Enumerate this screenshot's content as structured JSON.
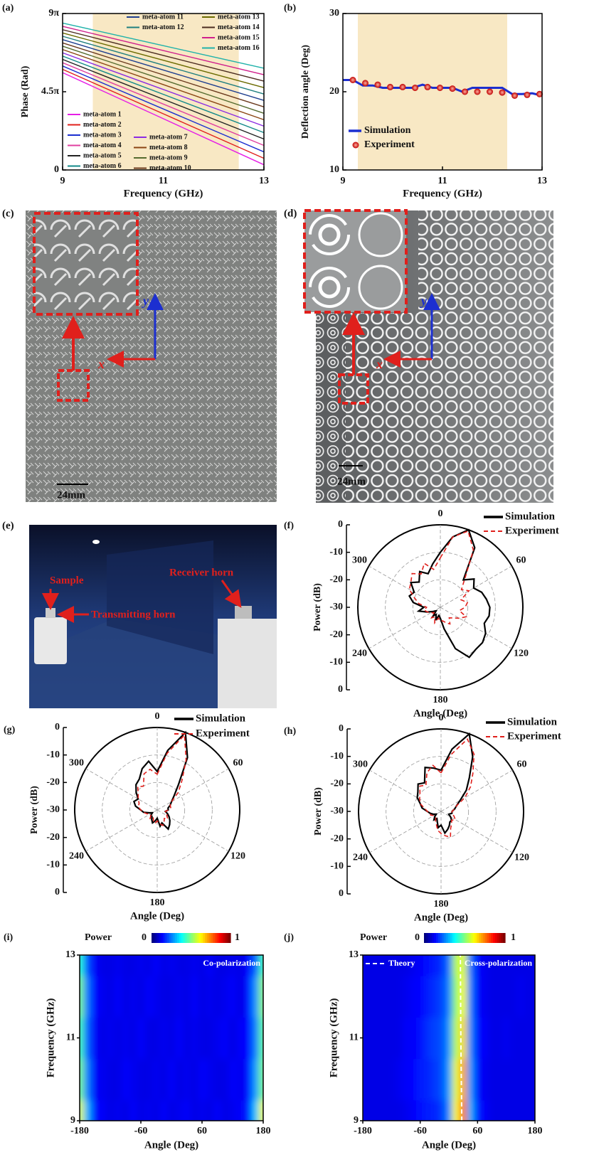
{
  "chart_data": [
    {
      "panel": "(a)",
      "type": "line",
      "xlabel": "Frequency (GHz)",
      "ylabel": "Phase (Rad)",
      "x": [
        9,
        10,
        11,
        12,
        13
      ],
      "xlim": [
        9,
        13
      ],
      "xticks": [
        9,
        11,
        13
      ],
      "ylim": [
        0,
        28.274
      ],
      "yticks": [
        0,
        {
          "value": 14.137,
          "label": "4.5π"
        },
        {
          "value": 28.274,
          "label": "9π"
        }
      ],
      "shaded_range": [
        9.6,
        12.5
      ],
      "shaded_color": "#f8e8c4",
      "series": [
        {
          "name": "meta-atom 1",
          "color": "#e61ee6",
          "values": [
            17.59,
            13.43,
            9.27,
            5.1,
            0.94
          ]
        },
        {
          "name": "meta-atom 2",
          "color": "#e0201c",
          "values": [
            18.19,
            14.17,
            10.15,
            6.12,
            2.1
          ]
        },
        {
          "name": "meta-atom 3",
          "color": "#1c2fd0",
          "values": [
            18.79,
            14.91,
            11.03,
            7.15,
            3.27
          ]
        },
        {
          "name": "meta-atom 4",
          "color": "#e040a0",
          "values": [
            19.38,
            15.64,
            11.91,
            8.17,
            4.43
          ]
        },
        {
          "name": "meta-atom 5",
          "color": "#222222",
          "values": [
            19.98,
            16.38,
            12.79,
            9.19,
            5.59
          ]
        },
        {
          "name": "meta-atom 6",
          "color": "#138a8a",
          "values": [
            20.58,
            17.12,
            13.67,
            10.21,
            6.75
          ]
        },
        {
          "name": "meta-atom 7",
          "color": "#8a2be2",
          "values": [
            21.17,
            17.86,
            14.55,
            11.23,
            7.92
          ]
        },
        {
          "name": "meta-atom 8",
          "color": "#8b4513",
          "values": [
            21.77,
            18.6,
            15.43,
            12.25,
            9.08
          ]
        },
        {
          "name": "meta-atom 9",
          "color": "#556b2f",
          "values": [
            22.37,
            19.34,
            16.31,
            13.27,
            10.24
          ]
        },
        {
          "name": "meta-atom 10",
          "color": "#6b3a1e",
          "values": [
            22.97,
            20.08,
            17.19,
            14.29,
            11.4
          ]
        },
        {
          "name": "meta-atom 11",
          "color": "#1f3f8f",
          "values": [
            23.56,
            20.81,
            18.07,
            15.32,
            12.57
          ]
        },
        {
          "name": "meta-atom 12",
          "color": "#1f7f7f",
          "values": [
            24.16,
            21.55,
            18.95,
            16.34,
            13.73
          ]
        },
        {
          "name": "meta-atom 13",
          "color": "#6b6b00",
          "values": [
            24.76,
            22.29,
            19.83,
            17.36,
            14.89
          ]
        },
        {
          "name": "meta-atom 14",
          "color": "#4b2c20",
          "values": [
            25.35,
            23.03,
            20.7,
            18.38,
            16.05
          ]
        },
        {
          "name": "meta-atom 15",
          "color": "#d0208c",
          "values": [
            25.95,
            23.77,
            21.58,
            19.4,
            17.22
          ]
        },
        {
          "name": "meta-atom 16",
          "color": "#20b2aa",
          "values": [
            26.55,
            24.51,
            22.47,
            20.42,
            18.38
          ]
        }
      ]
    },
    {
      "panel": "(b)",
      "type": "line",
      "xlabel": "Frequency (GHz)",
      "ylabel": "Deflection angle (Deg)",
      "xlim": [
        9,
        13
      ],
      "xticks": [
        9,
        11,
        13
      ],
      "ylim": [
        10,
        30
      ],
      "yticks": [
        10,
        20,
        30
      ],
      "shaded_range": [
        9.3,
        12.3
      ],
      "shaded_color": "#f8e8c4",
      "series": [
        {
          "name": "Simulation",
          "color": "#1c2fd0",
          "x": [
            9,
            9.2,
            9.4,
            9.6,
            9.8,
            10,
            10.2,
            10.4,
            10.6,
            10.8,
            11,
            11.2,
            11.4,
            11.6,
            11.8,
            12,
            12.2,
            12.4,
            12.6,
            12.8,
            13
          ],
          "values": [
            21.5,
            21.5,
            20.8,
            20.8,
            20.5,
            20.5,
            20.5,
            20.5,
            20.9,
            20.5,
            20.5,
            20.5,
            20.0,
            20.5,
            20.5,
            20.5,
            20.5,
            19.7,
            19.7,
            19.8,
            19.5
          ]
        },
        {
          "name": "Experiment",
          "color": "#e0201c",
          "marker": "circle",
          "x": [
            9.2,
            9.45,
            9.7,
            9.95,
            10.2,
            10.45,
            10.7,
            10.95,
            11.2,
            11.45,
            11.7,
            11.95,
            12.2,
            12.45,
            12.7,
            12.95
          ],
          "values": [
            21.5,
            21.1,
            20.9,
            20.6,
            20.6,
            20.5,
            20.6,
            20.5,
            20.4,
            20.0,
            20.0,
            20.0,
            19.9,
            19.5,
            19.6,
            19.7
          ]
        }
      ]
    },
    {
      "panel": "(f)",
      "type": "polar",
      "xlabel": "Angle (Deg)",
      "ylabel": "Power (dB)",
      "theta": [
        0,
        10,
        20,
        30,
        40,
        50,
        60,
        70,
        80,
        90,
        100,
        110,
        120,
        130,
        140,
        150,
        160,
        170,
        180,
        190,
        200,
        210,
        220,
        230,
        240,
        250,
        260,
        270,
        280,
        290,
        300,
        310,
        320,
        330,
        340,
        350
      ],
      "thetaticks": [
        0,
        60,
        120,
        180,
        240,
        300
      ],
      "rlim": [
        -30,
        0
      ],
      "rticks": [
        -30,
        -20,
        -10,
        0
      ],
      "series": [
        {
          "name": "Simulation",
          "color": "#000000",
          "values": [
            -10,
            -4,
            0,
            -5,
            -17,
            -14,
            -16,
            -14,
            -13,
            -12,
            -12,
            -13,
            -11,
            -10,
            -10,
            -9,
            -14,
            -22,
            -26,
            -27,
            -25,
            -27,
            -26,
            -28,
            -27,
            -25,
            -22,
            -24,
            -20,
            -18,
            -19,
            -16,
            -18,
            -15,
            -17,
            -14
          ]
        },
        {
          "name": "Experiment",
          "color": "#e0201c",
          "linestyle": "dashed",
          "values": [
            -12,
            -4,
            -0.5,
            -6,
            -16,
            -20,
            -18,
            -22,
            -20,
            -21,
            -23,
            -20,
            -22,
            -24,
            -25,
            -23,
            -24,
            -25,
            -25,
            -26,
            -24,
            -26,
            -25,
            -27,
            -26,
            -25,
            -24,
            -25,
            -22,
            -20,
            -17,
            -16,
            -14,
            -16,
            -13,
            -16
          ]
        }
      ]
    },
    {
      "panel": "(g)",
      "type": "polar",
      "xlabel": "Angle (Deg)",
      "ylabel": "Power (dB)",
      "theta": [
        0,
        10,
        20,
        30,
        40,
        50,
        60,
        70,
        80,
        90,
        100,
        110,
        120,
        130,
        140,
        150,
        160,
        170,
        180,
        190,
        200,
        210,
        220,
        230,
        240,
        250,
        260,
        270,
        280,
        290,
        300,
        310,
        320,
        330,
        340,
        350
      ],
      "thetaticks": [
        0,
        60,
        120,
        180,
        240,
        300
      ],
      "rlim": [
        -30,
        0
      ],
      "rticks": [
        -30,
        -20,
        -10,
        0
      ],
      "series": [
        {
          "name": "Simulation",
          "color": "#000000",
          "values": [
            -16,
            -8,
            0,
            -8,
            -18,
            -22,
            -24,
            -25,
            -26,
            -26,
            -27,
            -26,
            -25,
            -24,
            -23,
            -22,
            -25,
            -24,
            -27,
            -26,
            -25,
            -26,
            -27,
            -27,
            -28,
            -27,
            -25,
            -24,
            -22,
            -21,
            -22,
            -20,
            -18,
            -17,
            -14,
            -12
          ]
        },
        {
          "name": "Experiment",
          "color": "#e0201c",
          "linestyle": "dashed",
          "values": [
            -17,
            -9,
            -1,
            -9,
            -16,
            -20,
            -24,
            -25,
            -25,
            -26,
            -27,
            -26,
            -26,
            -25,
            -26,
            -25,
            -24,
            -25,
            -26,
            -25,
            -26,
            -27,
            -26,
            -27,
            -27,
            -26,
            -25,
            -24,
            -23,
            -23,
            -22,
            -21,
            -19,
            -20,
            -16,
            -15
          ]
        }
      ]
    },
    {
      "panel": "(h)",
      "type": "polar",
      "xlabel": "Angle (Deg)",
      "ylabel": "Power (dB)",
      "theta": [
        0,
        10,
        20,
        30,
        40,
        50,
        60,
        70,
        80,
        90,
        100,
        110,
        120,
        130,
        140,
        150,
        160,
        170,
        180,
        190,
        200,
        210,
        220,
        230,
        240,
        250,
        260,
        270,
        280,
        290,
        300,
        310,
        320,
        330,
        340,
        350
      ],
      "thetaticks": [
        0,
        60,
        120,
        180,
        240,
        300
      ],
      "rlim": [
        -30,
        0
      ],
      "rticks": [
        -30,
        -20,
        -10,
        0
      ],
      "series": [
        {
          "name": "Simulation",
          "color": "#000000",
          "values": [
            -15,
            -7,
            0,
            -7,
            -14,
            -18,
            -22,
            -24,
            -25,
            -26,
            -26,
            -27,
            -26,
            -25,
            -25,
            -24,
            -23,
            -22,
            -25,
            -24,
            -26,
            -27,
            -26,
            -27,
            -28,
            -27,
            -26,
            -25,
            -23,
            -22,
            -20,
            -19,
            -17,
            -18,
            -13,
            -14
          ]
        },
        {
          "name": "Experiment",
          "color": "#e0201c",
          "linestyle": "dashed",
          "values": [
            -16,
            -9,
            -2,
            -6,
            -12,
            -16,
            -20,
            -24,
            -25,
            -26,
            -26,
            -25,
            -24,
            -25,
            -24,
            -23,
            -20,
            -21,
            -22,
            -23,
            -25,
            -26,
            -27,
            -27,
            -27,
            -26,
            -26,
            -25,
            -24,
            -22,
            -21,
            -20,
            -18,
            -19,
            -15,
            -13
          ]
        }
      ]
    },
    {
      "panel": "(i)",
      "type": "heatmap",
      "xlabel": "Angle (Deg)",
      "ylabel": "Frequency (GHz)",
      "annotation": "Co-polarization",
      "colorbar_label": "Power",
      "zlim": [
        0,
        1
      ],
      "xlim": [
        -180,
        180
      ],
      "xticks": [
        -180,
        -60,
        60,
        180
      ],
      "ylim": [
        9,
        13
      ],
      "yticks": [
        9,
        11,
        13
      ],
      "x": [
        -180,
        -165,
        -150,
        -135,
        -120,
        -105,
        -90,
        -75,
        -60,
        -45,
        -30,
        -15,
        0,
        15,
        30,
        45,
        60,
        75,
        90,
        105,
        120,
        135,
        150,
        165,
        180
      ],
      "y": [
        9,
        10,
        11,
        12,
        13
      ],
      "z": [
        [
          0.6,
          0.3,
          0.14,
          0.12,
          0.1,
          0.11,
          0.1,
          0.12,
          0.1,
          0.11,
          0.1,
          0.12,
          0.1,
          0.11,
          0.12,
          0.1,
          0.11,
          0.1,
          0.12,
          0.1,
          0.11,
          0.12,
          0.15,
          0.32,
          0.62
        ],
        [
          0.5,
          0.25,
          0.12,
          0.11,
          0.1,
          0.1,
          0.12,
          0.11,
          0.1,
          0.1,
          0.11,
          0.1,
          0.12,
          0.1,
          0.11,
          0.1,
          0.12,
          0.11,
          0.1,
          0.1,
          0.12,
          0.11,
          0.14,
          0.28,
          0.5
        ],
        [
          0.45,
          0.22,
          0.12,
          0.1,
          0.11,
          0.1,
          0.11,
          0.1,
          0.12,
          0.1,
          0.1,
          0.11,
          0.1,
          0.12,
          0.1,
          0.11,
          0.1,
          0.1,
          0.11,
          0.12,
          0.1,
          0.12,
          0.13,
          0.25,
          0.48
        ],
        [
          0.5,
          0.24,
          0.13,
          0.11,
          0.1,
          0.12,
          0.1,
          0.11,
          0.1,
          0.12,
          0.11,
          0.1,
          0.1,
          0.11,
          0.1,
          0.12,
          0.1,
          0.11,
          0.1,
          0.11,
          0.12,
          0.1,
          0.14,
          0.27,
          0.52
        ],
        [
          0.42,
          0.2,
          0.12,
          0.1,
          0.1,
          0.11,
          0.1,
          0.1,
          0.11,
          0.1,
          0.12,
          0.1,
          0.11,
          0.1,
          0.1,
          0.11,
          0.1,
          0.12,
          0.1,
          0.1,
          0.11,
          0.1,
          0.13,
          0.22,
          0.45
        ]
      ]
    },
    {
      "panel": "(j)",
      "type": "heatmap",
      "xlabel": "Angle (Deg)",
      "ylabel": "Frequency (GHz)",
      "annotation": "Cross-polarization",
      "colorbar_label": "Power",
      "zlim": [
        0,
        1
      ],
      "xlim": [
        -180,
        180
      ],
      "xticks": [
        -180,
        -60,
        60,
        180
      ],
      "ylim": [
        9,
        13
      ],
      "yticks": [
        9,
        11,
        13
      ],
      "x": [
        -180,
        -165,
        -150,
        -135,
        -120,
        -105,
        -90,
        -75,
        -60,
        -45,
        -30,
        -15,
        0,
        15,
        30,
        45,
        60,
        75,
        90,
        105,
        120,
        135,
        150,
        165,
        180
      ],
      "y": [
        9,
        10,
        11,
        12,
        13
      ],
      "z": [
        [
          0.1,
          0.1,
          0.1,
          0.1,
          0.1,
          0.1,
          0.11,
          0.12,
          0.14,
          0.15,
          0.16,
          0.18,
          0.26,
          0.62,
          0.78,
          0.3,
          0.15,
          0.12,
          0.1,
          0.1,
          0.1,
          0.1,
          0.1,
          0.1,
          0.1
        ],
        [
          0.1,
          0.1,
          0.1,
          0.1,
          0.1,
          0.11,
          0.12,
          0.13,
          0.15,
          0.16,
          0.18,
          0.2,
          0.28,
          0.6,
          0.72,
          0.28,
          0.14,
          0.11,
          0.1,
          0.1,
          0.1,
          0.1,
          0.1,
          0.1,
          0.1
        ],
        [
          0.1,
          0.1,
          0.1,
          0.1,
          0.1,
          0.1,
          0.12,
          0.12,
          0.14,
          0.17,
          0.19,
          0.2,
          0.27,
          0.55,
          0.66,
          0.26,
          0.14,
          0.12,
          0.1,
          0.1,
          0.11,
          0.1,
          0.1,
          0.1,
          0.1
        ],
        [
          0.1,
          0.1,
          0.1,
          0.1,
          0.1,
          0.1,
          0.11,
          0.12,
          0.13,
          0.15,
          0.17,
          0.19,
          0.25,
          0.52,
          0.62,
          0.25,
          0.13,
          0.11,
          0.1,
          0.1,
          0.1,
          0.1,
          0.11,
          0.1,
          0.1
        ],
        [
          0.1,
          0.1,
          0.1,
          0.1,
          0.1,
          0.1,
          0.1,
          0.11,
          0.12,
          0.14,
          0.15,
          0.17,
          0.24,
          0.55,
          0.6,
          0.24,
          0.13,
          0.11,
          0.1,
          0.1,
          0.1,
          0.1,
          0.1,
          0.1,
          0.1
        ]
      ],
      "lines": [
        {
          "name": "Theory",
          "color": "#ffffff",
          "linestyle": "dashed",
          "x": [
            27,
            26,
            25,
            24.5,
            24
          ],
          "y": [
            9,
            10,
            11,
            12,
            13
          ]
        }
      ]
    }
  ],
  "photos": [
    {
      "panel": "(c)",
      "axis_x": "x",
      "axis_y": "y",
      "scale_bar": "24mm"
    },
    {
      "panel": "(d)",
      "axis_x": "x",
      "axis_y": "y",
      "scale_bar": "24mm"
    },
    {
      "panel": "(e)",
      "labels": [
        "Sample",
        "Transmitting horn",
        "Receiver horn"
      ]
    }
  ]
}
